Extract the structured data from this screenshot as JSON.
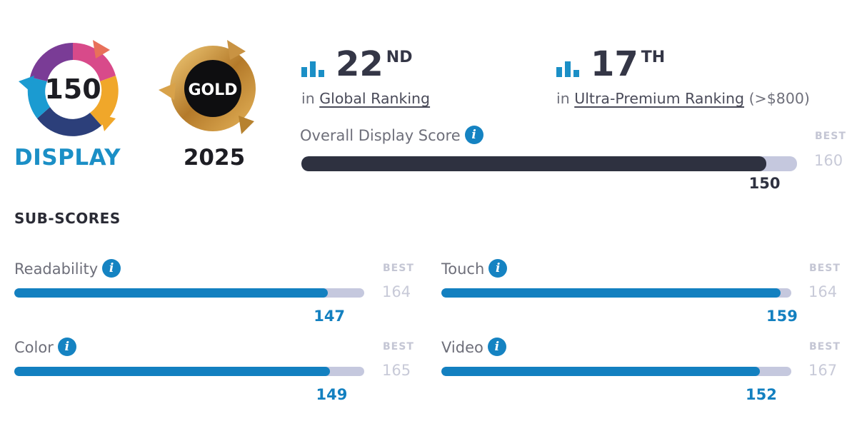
{
  "badges": {
    "display_score": "150",
    "display_label": "DISPLAY",
    "award_label": "GOLD",
    "award_year": "2025"
  },
  "rankings": [
    {
      "number": "22",
      "suffix": "ND",
      "prefix": "in",
      "link": "Global Ranking",
      "extra": ""
    },
    {
      "number": "17",
      "suffix": "TH",
      "prefix": "in",
      "link": "Ultra-Premium Ranking",
      "extra": "(>$800)"
    }
  ],
  "overall": {
    "label": "Overall Display Score",
    "score": 150,
    "best": 160,
    "best_label": "BEST"
  },
  "subscores_title": "SUB-SCORES",
  "subscores": [
    {
      "label": "Readability",
      "score": 147,
      "best": 164,
      "best_label": "BEST"
    },
    {
      "label": "Touch",
      "score": 159,
      "best": 164,
      "best_label": "BEST"
    },
    {
      "label": "Color",
      "score": 149,
      "best": 165,
      "best_label": "BEST"
    },
    {
      "label": "Video",
      "score": 152,
      "best": 167,
      "best_label": "BEST"
    }
  ],
  "colors": {
    "overall_fill": "#2e3140",
    "sub_fill": "#1380c0",
    "track": "#c5c8de",
    "accent": "#1b8fc6",
    "gold": "#c9932f"
  },
  "icons": [
    "rank-bars-icon",
    "info-icon"
  ]
}
